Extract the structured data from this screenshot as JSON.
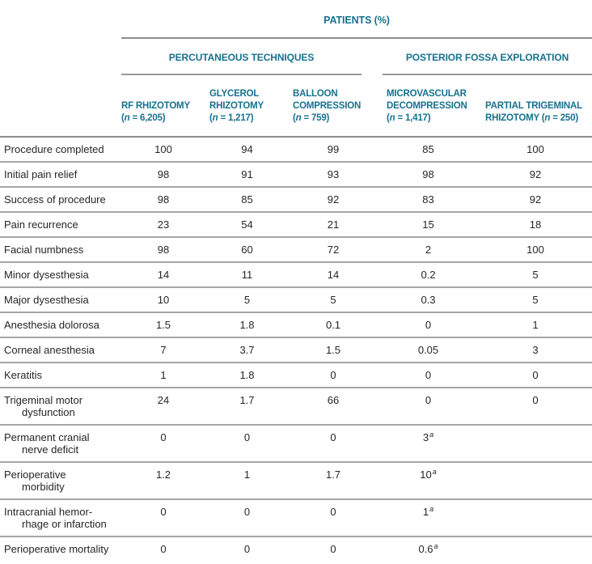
{
  "table": {
    "spanner": "PATIENTS (%)",
    "groups": [
      {
        "label": "PERCUTANEOUS TECHNIQUES"
      },
      {
        "label": "POSTERIOR FOSSA EXPLORATION"
      }
    ],
    "columns": [
      {
        "lines": [
          "RF RHIZOTOMY"
        ],
        "n": "6,205",
        "n_inline": false
      },
      {
        "lines": [
          "GLYCEROL",
          "RHIZOTOMY"
        ],
        "n": "1,217",
        "n_inline": false
      },
      {
        "lines": [
          "BALLOON",
          "COMPRESSION"
        ],
        "n": "759",
        "n_inline": false
      },
      {
        "lines": [
          "MICROVASCULAR",
          "DECOMPRESSION"
        ],
        "n": "1,417",
        "n_inline": false
      },
      {
        "lines": [
          "PARTIAL TRIGEMINAL",
          "RHIZOTOMY"
        ],
        "n": "250",
        "n_inline": true
      }
    ],
    "rows": [
      {
        "label_lines": [
          "Procedure completed"
        ],
        "values": [
          "100",
          "94",
          "99",
          "85",
          "100"
        ]
      },
      {
        "label_lines": [
          "Initial pain relief"
        ],
        "values": [
          "98",
          "91",
          "93",
          "98",
          "92"
        ]
      },
      {
        "label_lines": [
          "Success of procedure"
        ],
        "values": [
          "98",
          "85",
          "92",
          "83",
          "92"
        ]
      },
      {
        "label_lines": [
          "Pain recurrence"
        ],
        "values": [
          "23",
          "54",
          "21",
          "15",
          "18"
        ]
      },
      {
        "label_lines": [
          "Facial numbness"
        ],
        "values": [
          "98",
          "60",
          "72",
          "2",
          "100"
        ]
      },
      {
        "label_lines": [
          "Minor dysesthesia"
        ],
        "values": [
          "14",
          "11",
          "14",
          "0.2",
          "5"
        ]
      },
      {
        "label_lines": [
          "Major dysesthesia"
        ],
        "values": [
          "10",
          "5",
          "5",
          "0.3",
          "5"
        ]
      },
      {
        "label_lines": [
          "Anesthesia dolorosa"
        ],
        "values": [
          "1.5",
          "1.8",
          "0.1",
          "0",
          "1"
        ]
      },
      {
        "label_lines": [
          "Corneal anesthesia"
        ],
        "values": [
          "7",
          "3.7",
          "1.5",
          "0.05",
          "3"
        ]
      },
      {
        "label_lines": [
          "Keratitis"
        ],
        "values": [
          "1",
          "1.8",
          "0",
          "0",
          "0"
        ]
      },
      {
        "label_lines": [
          "Trigeminal motor",
          "dysfunction"
        ],
        "values": [
          "24",
          "1.7",
          "66",
          "0",
          "0"
        ]
      },
      {
        "label_lines": [
          "Permanent cranial",
          "nerve deficit"
        ],
        "values": [
          "0",
          "0",
          "0",
          {
            "v": "3",
            "sup": "a"
          },
          ""
        ]
      },
      {
        "label_lines": [
          "Perioperative",
          "morbidity"
        ],
        "values": [
          "1.2",
          "1",
          "1.7",
          {
            "v": "10",
            "sup": "a"
          },
          ""
        ]
      },
      {
        "label_lines": [
          "Intracranial hemor-",
          "rhage or infarction"
        ],
        "values": [
          "0",
          "0",
          "0",
          {
            "v": "1",
            "sup": "a"
          },
          ""
        ]
      },
      {
        "label_lines": [
          "Perioperative mortality"
        ],
        "values": [
          "0",
          "0",
          "0",
          {
            "v": "0.6",
            "sup": "a"
          },
          ""
        ]
      }
    ],
    "colors": {
      "header_teal": "#16718f",
      "rule_dark": "#8e8e8e",
      "rule_light": "#a6a6a6"
    }
  }
}
